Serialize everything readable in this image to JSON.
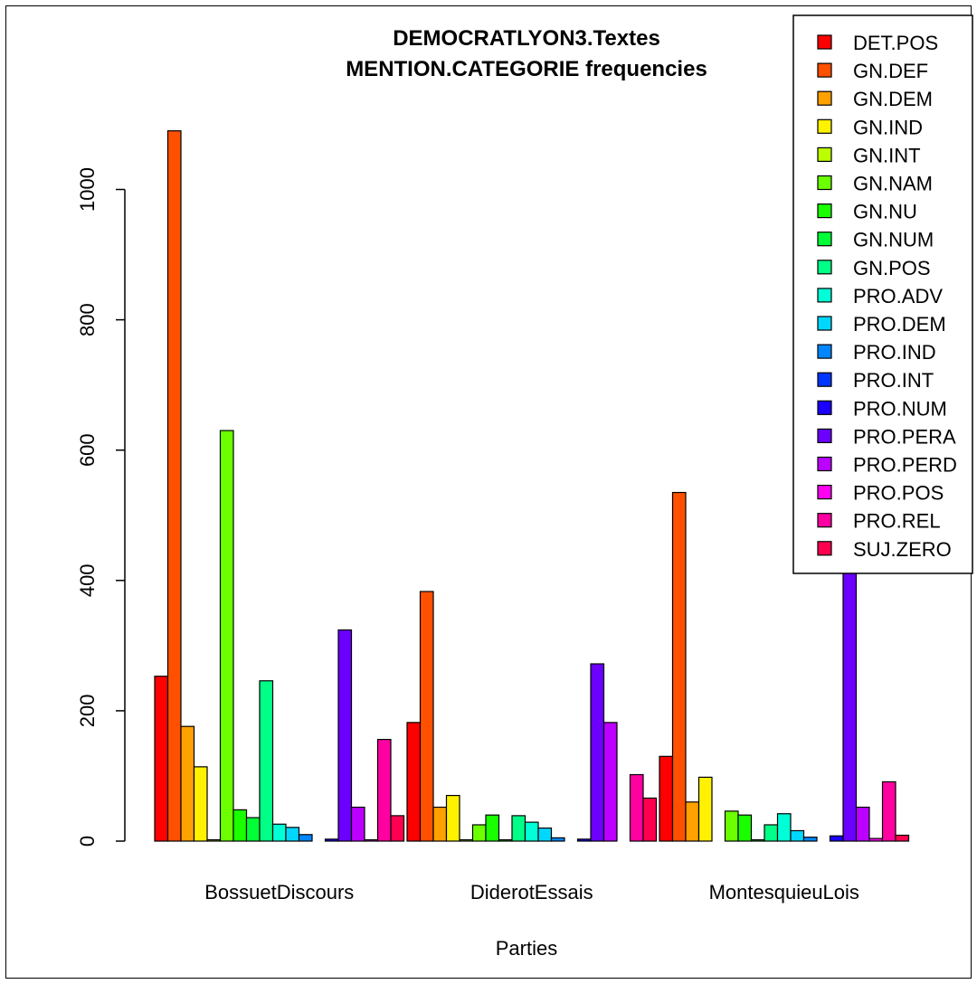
{
  "chart_data": {
    "type": "bar",
    "title": [
      "DEMOCRATLYON3.Textes",
      "MENTION.CATEGORIE frequencies"
    ],
    "xlabel": "Parties",
    "ylabel": "",
    "ylim": [
      0,
      1100
    ],
    "yticks": [
      0,
      200,
      400,
      600,
      800,
      1000
    ],
    "legend_position": "top-right",
    "grid": false,
    "categories": [
      "BossuetDiscours",
      "DiderotEssais",
      "MontesquieuLois"
    ],
    "series": [
      {
        "name": "DET.POS",
        "color": "#FF0000",
        "values": [
          253,
          182,
          130
        ]
      },
      {
        "name": "GN.DEF",
        "color": "#FF5000",
        "values": [
          1090,
          383,
          535
        ]
      },
      {
        "name": "GN.DEM",
        "color": "#FFA100",
        "values": [
          176,
          52,
          60
        ]
      },
      {
        "name": "GN.IND",
        "color": "#FFF200",
        "values": [
          114,
          70,
          98
        ]
      },
      {
        "name": "GN.INT",
        "color": "#BCFF00",
        "values": [
          2,
          2,
          0
        ]
      },
      {
        "name": "GN.NAM",
        "color": "#6BFF00",
        "values": [
          630,
          25,
          46
        ]
      },
      {
        "name": "GN.NU",
        "color": "#1AFF00",
        "values": [
          48,
          40,
          40
        ]
      },
      {
        "name": "GN.NUM",
        "color": "#00FF36",
        "values": [
          36,
          2,
          2
        ]
      },
      {
        "name": "GN.POS",
        "color": "#00FF87",
        "values": [
          246,
          39,
          25
        ]
      },
      {
        "name": "PRO.ADV",
        "color": "#00FFD7",
        "values": [
          26,
          29,
          42
        ]
      },
      {
        "name": "PRO.DEM",
        "color": "#00D7FF",
        "values": [
          21,
          20,
          16
        ]
      },
      {
        "name": "PRO.IND",
        "color": "#0087FF",
        "values": [
          10,
          5,
          6
        ]
      },
      {
        "name": "PRO.INT",
        "color": "#0036FF",
        "values": [
          0,
          0,
          0
        ]
      },
      {
        "name": "PRO.NUM",
        "color": "#1A00FF",
        "values": [
          3,
          3,
          8
        ]
      },
      {
        "name": "PRO.PERA",
        "color": "#6B00FF",
        "values": [
          324,
          272,
          423
        ]
      },
      {
        "name": "PRO.PERD",
        "color": "#BC00FF",
        "values": [
          52,
          182,
          52
        ]
      },
      {
        "name": "PRO.POS",
        "color": "#FF00F2",
        "values": [
          2,
          0,
          4
        ]
      },
      {
        "name": "PRO.REL",
        "color": "#FF00A1",
        "values": [
          156,
          102,
          91
        ]
      },
      {
        "name": "SUJ.ZERO",
        "color": "#FF0050",
        "values": [
          39,
          66,
          9
        ]
      }
    ]
  }
}
